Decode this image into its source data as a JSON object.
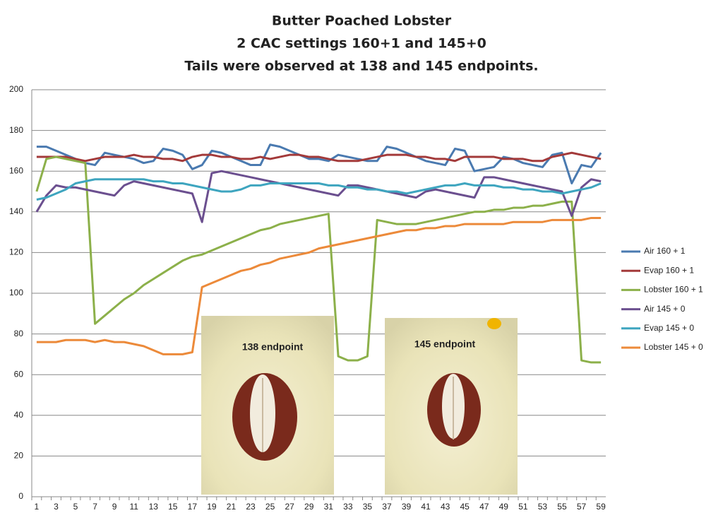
{
  "chart_data": {
    "type": "line",
    "title": [
      "Butter Poached Lobster",
      "2 CAC settings 160+1 and 145+0",
      "Tails were observed at 138 and 145 endpoints."
    ],
    "categories": [
      1,
      null,
      3,
      null,
      5,
      null,
      7,
      null,
      9,
      null,
      11,
      null,
      13,
      null,
      15,
      null,
      17,
      null,
      19,
      null,
      21,
      null,
      23,
      null,
      25,
      null,
      27,
      null,
      29,
      null,
      31,
      null,
      33,
      null,
      35,
      null,
      37,
      null,
      39,
      null,
      41,
      null,
      43,
      null,
      45,
      null,
      47,
      null,
      49,
      null,
      51,
      null,
      53,
      null,
      55,
      null,
      57,
      null,
      59
    ],
    "ylim": [
      0,
      200
    ],
    "yticks": [
      0,
      20,
      40,
      60,
      80,
      100,
      120,
      140,
      160,
      180,
      200
    ],
    "grid": true,
    "legend": "right",
    "annotations": [
      "138 endpoint",
      "145 endpoint"
    ],
    "series": [
      {
        "name": "Air 160 + 1",
        "color": "#4a7ab0",
        "values": [
          172,
          172,
          170,
          168,
          166,
          164,
          163,
          169,
          168,
          167,
          166,
          164,
          165,
          171,
          170,
          168,
          161,
          163,
          170,
          169,
          167,
          165,
          163,
          163,
          173,
          172,
          170,
          168,
          166,
          166,
          165,
          168,
          167,
          166,
          165,
          165,
          172,
          171,
          169,
          167,
          165,
          164,
          163,
          171,
          170,
          160,
          161,
          162,
          167,
          166,
          164,
          163,
          162,
          168,
          169,
          154,
          163,
          162,
          169
        ]
      },
      {
        "name": "Evap 160 + 1",
        "color": "#a33a3a",
        "values": [
          167,
          167,
          167,
          167,
          166,
          165,
          166,
          167,
          167,
          167,
          168,
          167,
          167,
          166,
          166,
          165,
          167,
          168,
          168,
          167,
          167,
          166,
          166,
          167,
          166,
          167,
          168,
          168,
          167,
          167,
          166,
          165,
          165,
          165,
          166,
          167,
          168,
          168,
          168,
          167,
          167,
          166,
          166,
          165,
          167,
          167,
          167,
          167,
          166,
          166,
          166,
          165,
          165,
          167,
          168,
          169,
          168,
          167,
          166
        ]
      },
      {
        "name": "Lobster 160 + 1",
        "color": "#8cb04a",
        "values": [
          150,
          166,
          167,
          166,
          165,
          164,
          85,
          89,
          93,
          97,
          100,
          104,
          107,
          110,
          113,
          116,
          118,
          119,
          121,
          123,
          125,
          127,
          129,
          131,
          132,
          134,
          135,
          136,
          137,
          138,
          139,
          69,
          67,
          67,
          69,
          136,
          135,
          134,
          134,
          134,
          135,
          136,
          137,
          138,
          139,
          140,
          140,
          141,
          141,
          142,
          142,
          143,
          143,
          144,
          145,
          145,
          67,
          66,
          66
        ]
      },
      {
        "name": "Air 145 + 0",
        "color": "#6b4f8f",
        "values": [
          140,
          148,
          153,
          152,
          152,
          151,
          150,
          149,
          148,
          153,
          155,
          154,
          153,
          152,
          151,
          150,
          149,
          135,
          159,
          160,
          159,
          158,
          157,
          156,
          155,
          154,
          153,
          152,
          151,
          150,
          149,
          148,
          153,
          153,
          152,
          151,
          150,
          149,
          148,
          147,
          150,
          151,
          150,
          149,
          148,
          147,
          157,
          157,
          156,
          155,
          154,
          153,
          152,
          151,
          150,
          138,
          152,
          156,
          155
        ]
      },
      {
        "name": "Evap 145 + 0",
        "color": "#3ea5bf",
        "values": [
          146,
          147,
          149,
          151,
          154,
          155,
          156,
          156,
          156,
          156,
          156,
          156,
          155,
          155,
          154,
          154,
          153,
          152,
          151,
          150,
          150,
          151,
          153,
          153,
          154,
          154,
          154,
          154,
          154,
          154,
          153,
          153,
          152,
          152,
          151,
          151,
          150,
          150,
          149,
          150,
          151,
          152,
          153,
          153,
          154,
          153,
          153,
          153,
          152,
          152,
          151,
          151,
          150,
          150,
          149,
          150,
          151,
          152,
          154
        ]
      },
      {
        "name": "Lobster 145 + 0",
        "color": "#ec8a3a",
        "values": [
          76,
          76,
          76,
          77,
          77,
          77,
          76,
          77,
          76,
          76,
          75,
          74,
          72,
          70,
          70,
          70,
          71,
          103,
          105,
          107,
          109,
          111,
          112,
          114,
          115,
          117,
          118,
          119,
          120,
          122,
          123,
          124,
          125,
          126,
          127,
          128,
          129,
          130,
          131,
          131,
          132,
          132,
          133,
          133,
          134,
          134,
          134,
          134,
          134,
          135,
          135,
          135,
          135,
          136,
          136,
          136,
          136,
          137,
          137
        ]
      }
    ]
  }
}
